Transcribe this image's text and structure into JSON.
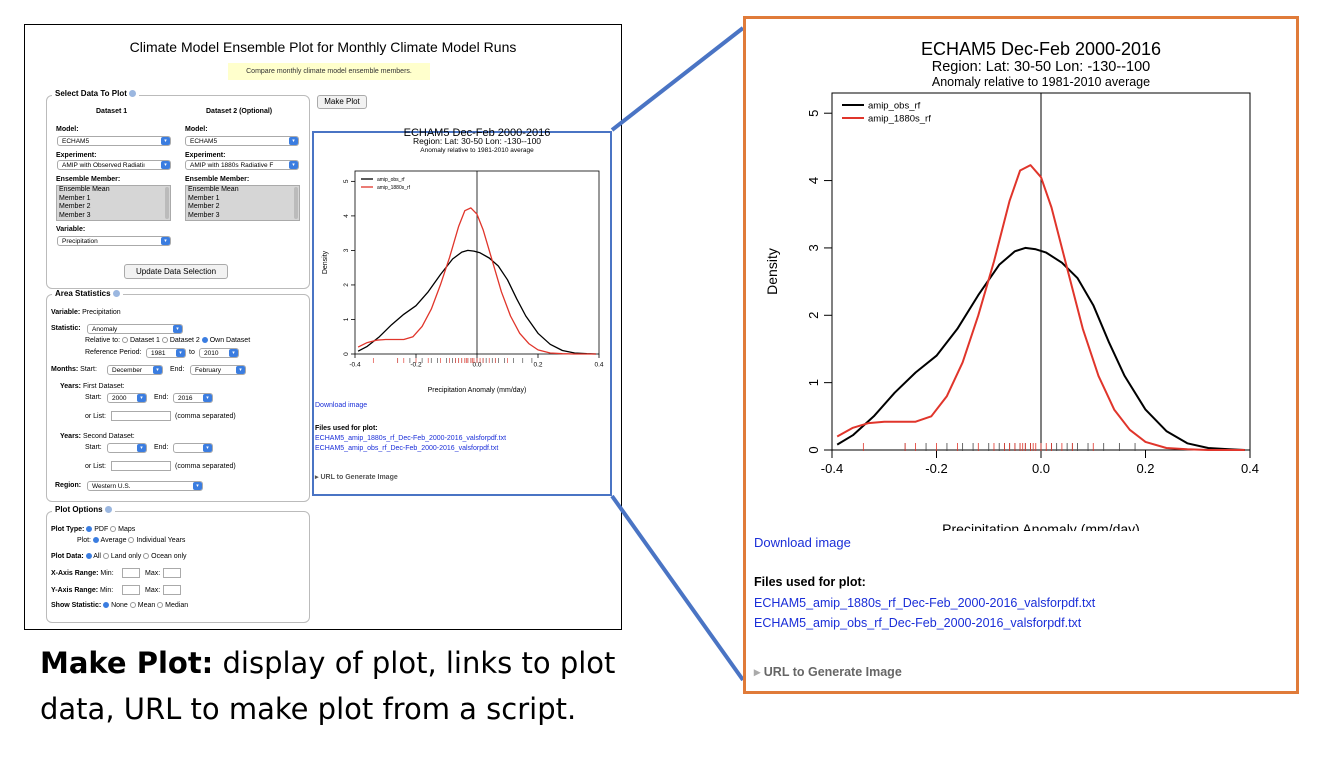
{
  "left": {
    "title": "Climate Model Ensemble Plot for Monthly Climate Model Runs",
    "note": "Compare monthly climate model ensemble members.",
    "select_panel": {
      "title": "Select Data To Plot",
      "dataset1_header": "Dataset 1",
      "dataset2_header": "Dataset 2 (Optional)",
      "model_label": "Model:",
      "model1": "ECHAM5",
      "model2": "ECHAM5",
      "experiment_label": "Experiment:",
      "experiment1": "AMIP with Observed Radiatiı",
      "experiment2": "AMIP with 1880s Radiative F",
      "ensemble_label": "Ensemble Member:",
      "members": [
        "Ensemble Mean",
        "Member 1",
        "Member 2",
        "Member 3"
      ],
      "variable_label": "Variable:",
      "variable": "Precipitation",
      "update_button": "Update Data Selection"
    },
    "make_plot_button": "Make Plot",
    "area_panel": {
      "title": "Area Statistics",
      "variable_label": "Variable:",
      "variable_value": "Precipitation",
      "statistic_label": "Statistic:",
      "statistic_value": "Anomaly",
      "relative_to": "Relative to:",
      "rel_opt1": "Dataset 1",
      "rel_opt2": "Dataset 2",
      "rel_opt3": "Own Dataset",
      "ref_period": "Reference Period:",
      "ref_start": "1981",
      "to": "to",
      "ref_end": "2010",
      "months_label": "Months:",
      "start_label": "Start:",
      "months_start": "December",
      "end_label": "End:",
      "months_end": "February",
      "years_label": "Years:",
      "first_dataset": "First Dataset:",
      "years_start": "2000",
      "years_end": "2016",
      "or_list": "or List:",
      "comma_sep": "(comma separated)",
      "second_dataset": "Second Dataset:",
      "region_label": "Region:",
      "region_value": "Western U.S."
    },
    "plot_options": {
      "title": "Plot Options",
      "plot_type_label": "Plot Type:",
      "pdf": "PDF",
      "maps": "Maps",
      "plot_label": "Plot:",
      "average": "Average",
      "individual_years": "Individual Years",
      "plot_data_label": "Plot Data:",
      "all": "All",
      "land_only": "Land only",
      "ocean_only": "Ocean only",
      "x_axis_range": "X-Axis Range:",
      "y_axis_range": "Y-Axis Range:",
      "min": "Min:",
      "max": "Max:",
      "show_statistic": "Show Statistic:",
      "none": "None",
      "mean": "Mean",
      "median": "Median"
    },
    "download": "Download image",
    "files_label": "Files used for plot:",
    "file1": "ECHAM5_amip_1880s_rf_Dec-Feb_2000-2016_valsforpdf.txt",
    "file2": "ECHAM5_amip_obs_rf_Dec-Feb_2000-2016_valsforpdf.txt",
    "url_label": "URL to Generate Image"
  },
  "chart_data": {
    "type": "line",
    "title": "ECHAM5 Dec-Feb 2000-2016",
    "subtitle": "Region: Lat: 30-50 Lon: -130--100",
    "subtitle2": "Anomaly relative to 1981-2010 average",
    "xlabel": "Precipitation Anomaly (mm/day)",
    "ylabel": "Density",
    "xlim": [
      -0.4,
      0.4
    ],
    "ylim": [
      0,
      5.3
    ],
    "xticks": [
      "-0.4",
      "-0.2",
      "0.0",
      "0.2",
      "0.4"
    ],
    "yticks": [
      "0",
      "1",
      "2",
      "3",
      "4",
      "5"
    ],
    "legend_position": "top-left",
    "vline_x": 0,
    "series": [
      {
        "name": "amip_obs_rf",
        "color": "#000000",
        "x": [
          -0.39,
          -0.36,
          -0.32,
          -0.28,
          -0.24,
          -0.2,
          -0.16,
          -0.12,
          -0.08,
          -0.05,
          -0.03,
          -0.01,
          0.01,
          0.04,
          0.07,
          0.1,
          0.13,
          0.16,
          0.2,
          0.24,
          0.28,
          0.32,
          0.36,
          0.39
        ],
        "y": [
          0.08,
          0.22,
          0.5,
          0.85,
          1.15,
          1.4,
          1.8,
          2.3,
          2.75,
          2.95,
          3.0,
          2.98,
          2.93,
          2.78,
          2.55,
          2.15,
          1.6,
          1.1,
          0.6,
          0.28,
          0.1,
          0.03,
          0.01,
          0.0
        ]
      },
      {
        "name": "amip_1880s_rf",
        "color": "#e0352b",
        "x": [
          -0.39,
          -0.36,
          -0.33,
          -0.3,
          -0.27,
          -0.24,
          -0.21,
          -0.18,
          -0.15,
          -0.12,
          -0.09,
          -0.06,
          -0.04,
          -0.02,
          0.0,
          0.02,
          0.05,
          0.08,
          0.11,
          0.14,
          0.17,
          0.2,
          0.24,
          0.28,
          0.32,
          0.36,
          0.39
        ],
        "y": [
          0.2,
          0.33,
          0.4,
          0.42,
          0.42,
          0.42,
          0.5,
          0.8,
          1.3,
          2.0,
          2.8,
          3.7,
          4.15,
          4.23,
          4.05,
          3.6,
          2.7,
          1.8,
          1.1,
          0.6,
          0.3,
          0.12,
          0.03,
          0.01,
          0.0,
          0.0,
          0.0
        ]
      }
    ],
    "rug_black": [
      -0.26,
      -0.22,
      -0.18,
      -0.15,
      -0.13,
      -0.1,
      -0.08,
      -0.07,
      -0.06,
      -0.05,
      -0.04,
      -0.03,
      -0.02,
      0.0,
      0.02,
      0.03,
      0.05,
      0.06,
      0.07,
      0.09,
      0.12,
      0.15,
      0.18
    ],
    "rug_red": [
      -0.34,
      -0.26,
      -0.24,
      -0.2,
      -0.16,
      -0.12,
      -0.09,
      -0.07,
      -0.06,
      -0.05,
      -0.04,
      -0.035,
      -0.03,
      -0.02,
      -0.015,
      -0.01,
      0.0,
      0.01,
      0.02,
      0.04,
      0.06,
      0.1
    ]
  },
  "zoom": {
    "download": "Download image",
    "files_label": "Files used for plot:",
    "file1": "ECHAM5_amip_1880s_rf_Dec-Feb_2000-2016_valsforpdf.txt",
    "file2": "ECHAM5_amip_obs_rf_Dec-Feb_2000-2016_valsforpdf.txt",
    "url_label": "URL to Generate Image"
  },
  "caption": {
    "bold": "Make Plot:",
    "text": " display of plot, links to plot data, URL to make plot from a script."
  },
  "colors": {
    "zoom_border": "#e07b39",
    "connector": "#4a74c4",
    "link": "#1a2ed8"
  }
}
